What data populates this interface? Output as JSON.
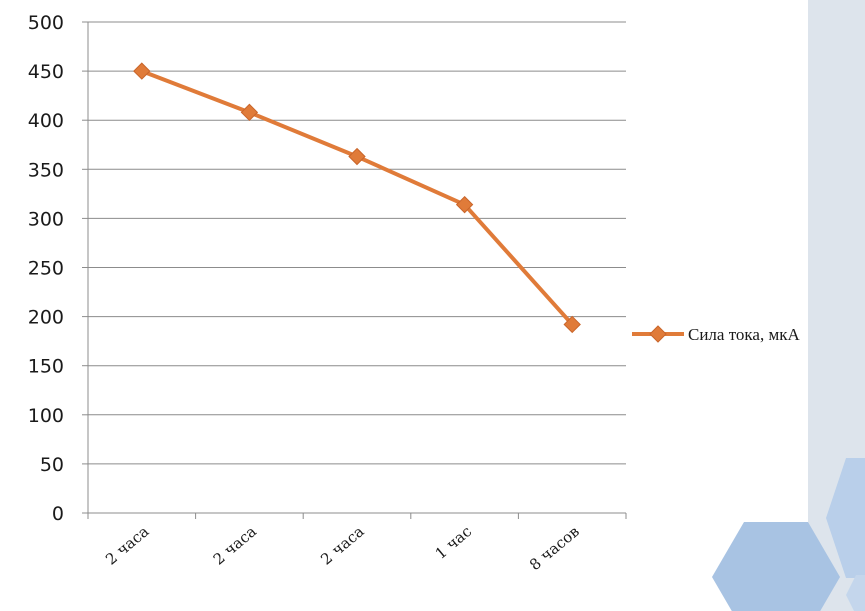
{
  "chart_data": {
    "type": "line",
    "categories": [
      "2 часа",
      "2 часа",
      "2 часа",
      "1 час",
      "8 часов"
    ],
    "series": [
      {
        "name": "Сила тока, мкА",
        "values": [
          450,
          408,
          363,
          314,
          192
        ],
        "color": "#e07b39"
      }
    ],
    "ylim": [
      0,
      500
    ],
    "yticks": [
      0,
      50,
      100,
      150,
      200,
      250,
      300,
      350,
      400,
      450,
      500
    ],
    "grid": true,
    "legend_position": "right",
    "marker": "diamond"
  }
}
